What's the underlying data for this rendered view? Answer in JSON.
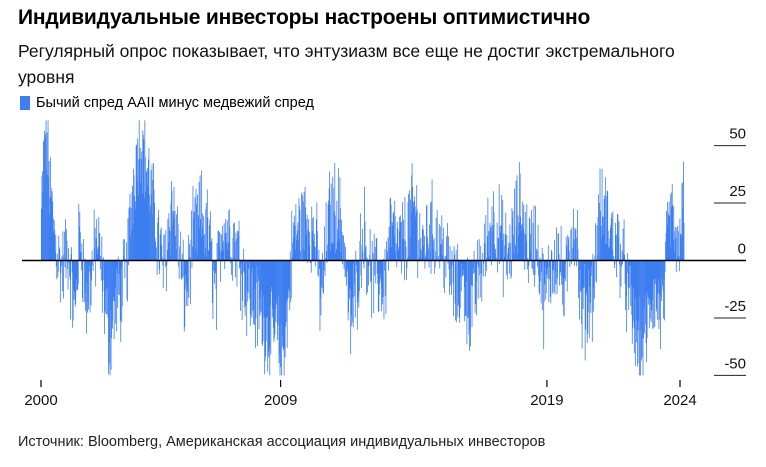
{
  "title": "Индивидуальные инвесторы настроены оптимистично",
  "subtitle": "Регулярный опрос показывает, что энтузиазм все еще не достиг экстремального уровня",
  "source": "Источник: Bloomberg, Американская ассоциация индивидуальных инвесторов",
  "colors": {
    "bar": "#3d7ef0",
    "axis": "#000000",
    "grid": "#222222"
  },
  "chart_data": {
    "type": "bar",
    "series": [
      {
        "name": "Бычий спред AAII минус медвежий спред",
        "x_range": [
          "2000-01",
          "2024-02"
        ],
        "points_per_year": 52,
        "anchors": [
          [
            2000.0,
            20
          ],
          [
            2000.15,
            60
          ],
          [
            2000.3,
            35
          ],
          [
            2000.5,
            10
          ],
          [
            2000.75,
            -5
          ],
          [
            2001.0,
            5
          ],
          [
            2001.25,
            -25
          ],
          [
            2001.45,
            15
          ],
          [
            2001.7,
            -20
          ],
          [
            2001.85,
            -8
          ],
          [
            2002.1,
            10
          ],
          [
            2002.3,
            -10
          ],
          [
            2002.55,
            -35
          ],
          [
            2002.8,
            -18
          ],
          [
            2003.0,
            -15
          ],
          [
            2003.2,
            -5
          ],
          [
            2003.45,
            35
          ],
          [
            2003.7,
            55
          ],
          [
            2004.0,
            38
          ],
          [
            2004.3,
            15
          ],
          [
            2004.6,
            -5
          ],
          [
            2004.9,
            28
          ],
          [
            2005.1,
            10
          ],
          [
            2005.4,
            -18
          ],
          [
            2005.7,
            10
          ],
          [
            2006.0,
            20
          ],
          [
            2006.3,
            10
          ],
          [
            2006.55,
            -18
          ],
          [
            2006.8,
            18
          ],
          [
            2007.1,
            12
          ],
          [
            2007.4,
            5
          ],
          [
            2007.65,
            -10
          ],
          [
            2008.0,
            -20
          ],
          [
            2008.3,
            -25
          ],
          [
            2008.6,
            -35
          ],
          [
            2008.85,
            -30
          ],
          [
            2009.0,
            -45
          ],
          [
            2009.2,
            -30
          ],
          [
            2009.45,
            10
          ],
          [
            2009.7,
            15
          ],
          [
            2010.0,
            18
          ],
          [
            2010.3,
            10
          ],
          [
            2010.5,
            -20
          ],
          [
            2010.8,
            20
          ],
          [
            2011.1,
            25
          ],
          [
            2011.35,
            10
          ],
          [
            2011.6,
            -30
          ],
          [
            2011.85,
            -10
          ],
          [
            2012.1,
            15
          ],
          [
            2012.35,
            -5
          ],
          [
            2012.6,
            -10
          ],
          [
            2012.9,
            -10
          ],
          [
            2013.1,
            15
          ],
          [
            2013.4,
            5
          ],
          [
            2013.7,
            10
          ],
          [
            2014.0,
            25
          ],
          [
            2014.3,
            5
          ],
          [
            2014.6,
            15
          ],
          [
            2014.9,
            10
          ],
          [
            2015.1,
            5
          ],
          [
            2015.4,
            -8
          ],
          [
            2015.6,
            -15
          ],
          [
            2015.9,
            -10
          ],
          [
            2016.1,
            -25
          ],
          [
            2016.4,
            -8
          ],
          [
            2016.7,
            5
          ],
          [
            2016.95,
            20
          ],
          [
            2017.2,
            12
          ],
          [
            2017.5,
            0
          ],
          [
            2017.8,
            15
          ],
          [
            2018.0,
            25
          ],
          [
            2018.3,
            5
          ],
          [
            2018.6,
            10
          ],
          [
            2018.9,
            -20
          ],
          [
            2019.1,
            -5
          ],
          [
            2019.4,
            5
          ],
          [
            2019.65,
            -18
          ],
          [
            2019.9,
            15
          ],
          [
            2020.1,
            15
          ],
          [
            2020.25,
            -25
          ],
          [
            2020.5,
            -20
          ],
          [
            2020.75,
            -10
          ],
          [
            2020.95,
            20
          ],
          [
            2021.2,
            20
          ],
          [
            2021.45,
            10
          ],
          [
            2021.75,
            5
          ],
          [
            2021.9,
            -5
          ],
          [
            2022.1,
            -20
          ],
          [
            2022.35,
            -35
          ],
          [
            2022.55,
            -40
          ],
          [
            2022.75,
            -30
          ],
          [
            2022.95,
            -15
          ],
          [
            2023.15,
            -20
          ],
          [
            2023.35,
            -25
          ],
          [
            2023.55,
            15
          ],
          [
            2023.75,
            20
          ],
          [
            2023.85,
            -5
          ],
          [
            2024.0,
            20
          ],
          [
            2024.1,
            25
          ]
        ]
      }
    ],
    "x_ticks": [
      {
        "year": 2000,
        "label": "2000"
      },
      {
        "year": 2009,
        "label": "2009"
      },
      {
        "year": 2019,
        "label": "2019"
      },
      {
        "year": 2024,
        "label": "2024"
      }
    ],
    "y_ticks": [
      {
        "value": 50,
        "label": "50"
      },
      {
        "value": 25,
        "label": "25"
      },
      {
        "value": 0,
        "label": "0"
      },
      {
        "value": -25,
        "label": "-25"
      },
      {
        "value": -50,
        "label": "-50"
      }
    ],
    "ylim": [
      -52,
      62
    ],
    "xlim": [
      2000.0,
      2024.15
    ],
    "legend_position": "top-left"
  }
}
